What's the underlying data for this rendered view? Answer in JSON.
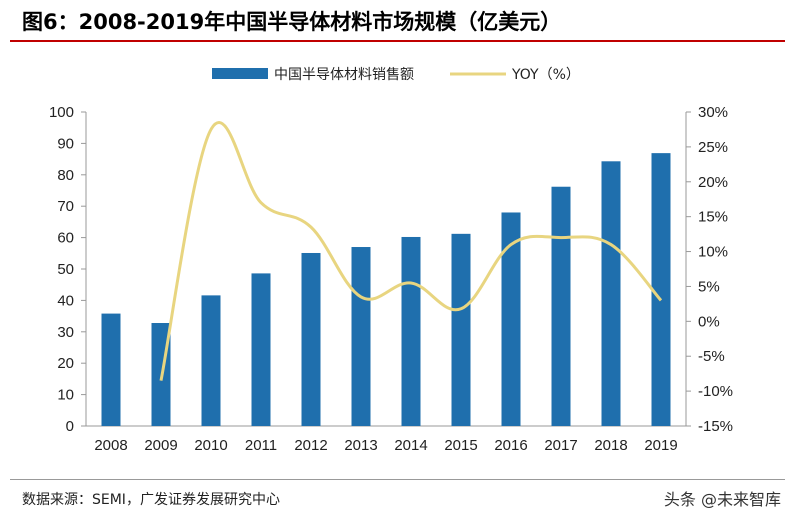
{
  "header": {
    "title": "图6：2008-2019年中国半导体材料市场规模（亿美元）"
  },
  "footer": {
    "source": "数据来源：SEMI，广发证券发展研究中心",
    "watermark": "头条 @未来智库"
  },
  "colors": {
    "bar": "#1f6fad",
    "line": "#e8d580",
    "title_rule": "#c00000"
  },
  "chart_data": {
    "type": "bar",
    "categories": [
      "2008",
      "2009",
      "2010",
      "2011",
      "2012",
      "2013",
      "2014",
      "2015",
      "2016",
      "2017",
      "2018",
      "2019"
    ],
    "series": [
      {
        "name": "中国半导体材料销售额",
        "type": "bar",
        "axis": "left",
        "values": [
          35.8,
          32.8,
          41.6,
          48.6,
          55.1,
          57.0,
          60.2,
          61.2,
          68.0,
          76.2,
          84.3,
          86.9
        ]
      },
      {
        "name": "YOY（%）",
        "type": "line",
        "axis": "right",
        "values": [
          null,
          -8.5,
          27.5,
          17.0,
          13.5,
          3.5,
          5.5,
          1.8,
          11.0,
          12.0,
          11.0,
          3.0
        ]
      }
    ],
    "left_axis": {
      "ylim": [
        0,
        100
      ],
      "ticks": [
        "0",
        "10",
        "20",
        "30",
        "40",
        "50",
        "60",
        "70",
        "80",
        "90",
        "100"
      ]
    },
    "right_axis": {
      "ylim": [
        -15,
        30
      ],
      "ticks": [
        "-15%",
        "-10%",
        "-5%",
        "0%",
        "5%",
        "10%",
        "15%",
        "20%",
        "25%",
        "30%"
      ]
    },
    "legend_position": "top-center",
    "grid": false
  }
}
